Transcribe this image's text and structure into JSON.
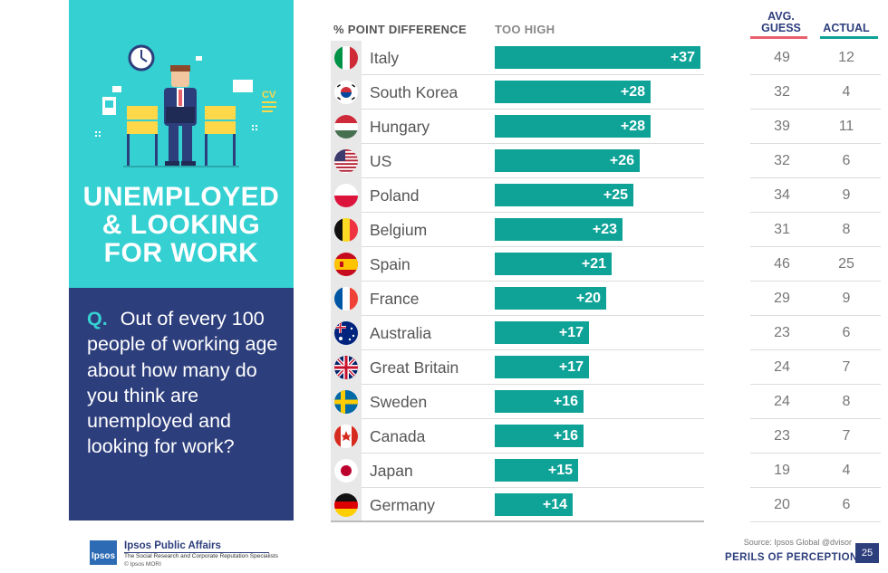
{
  "panel": {
    "title_lines": [
      "UNEMPLOYED",
      "& LOOKING",
      "FOR WORK"
    ],
    "question_prefix": "Q.",
    "question": "Out of every 100 people of working age about how many do you think are unemployed and looking for work?",
    "cv_label": "CV"
  },
  "headers": {
    "diff": "% POINT DIFFERENCE",
    "too_high": "TOO HIGH",
    "avg_guess": "AVG. GUESS",
    "actual": "ACTUAL"
  },
  "chart_data": {
    "type": "bar",
    "orientation": "horizontal",
    "categories": [
      "Italy",
      "South Korea",
      "Hungary",
      "US",
      "Poland",
      "Belgium",
      "Spain",
      "France",
      "Australia",
      "Great Britain",
      "Sweden",
      "Canada",
      "Japan",
      "Germany"
    ],
    "series": [
      {
        "values": [
          37,
          28,
          28,
          26,
          25,
          23,
          21,
          20,
          17,
          17,
          16,
          16,
          15,
          14
        ]
      }
    ],
    "value_labels": [
      "+37",
      "+28",
      "+28",
      "+26",
      "+25",
      "+23",
      "+21",
      "+20",
      "+17",
      "+17",
      "+16",
      "+16",
      "+15",
      "+14"
    ],
    "table": {
      "avg_guess": [
        49,
        32,
        39,
        32,
        34,
        31,
        46,
        29,
        23,
        24,
        24,
        23,
        19,
        20
      ],
      "actual": [
        12,
        4,
        11,
        6,
        9,
        8,
        25,
        9,
        6,
        7,
        8,
        7,
        4,
        6
      ]
    },
    "xlim": [
      0,
      37
    ],
    "bar_color": "#0fa398"
  },
  "flags": [
    "italy-flag-icon",
    "south-korea-flag-icon",
    "hungary-flag-icon",
    "us-flag-icon",
    "poland-flag-icon",
    "belgium-flag-icon",
    "spain-flag-icon",
    "france-flag-icon",
    "australia-flag-icon",
    "great-britain-flag-icon",
    "sweden-flag-icon",
    "canada-flag-icon",
    "japan-flag-icon",
    "germany-flag-icon"
  ],
  "footer": {
    "source": "Source: Ipsos Global @dvisor",
    "series_title": "PERILS OF PERCEPTION",
    "page": "25",
    "logo_text": "Ipsos",
    "company": "Ipsos Public Affairs",
    "tagline": "The Social Research and Corporate Reputation Specialists",
    "copyright": "© Ipsos MORI"
  },
  "colors": {
    "teal": "#35d0d2",
    "navy": "#2d3e7c",
    "bar": "#0fa398",
    "avg_underline": "#e8606c",
    "actual_underline": "#0fa398"
  }
}
